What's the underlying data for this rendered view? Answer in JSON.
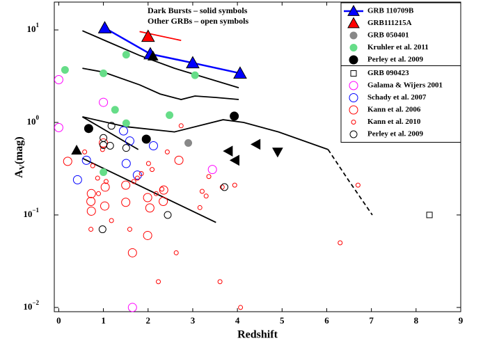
{
  "chart_data": {
    "type": "scatter",
    "xlabel": "Redshift",
    "ylabel": {
      "text": "A",
      "subscript": "V",
      "suffix": "(mag)"
    },
    "annotations": [
      "Dark Bursts – solid symbols",
      "Other GRBs – open symbols"
    ],
    "xlim": [
      -0.1,
      9
    ],
    "ylim": [
      0.009,
      20
    ],
    "log_y": true,
    "xticks": [
      0,
      1,
      2,
      3,
      4,
      5,
      6,
      7,
      8,
      9
    ],
    "yticks": [
      {
        "value": 0.01,
        "label": "10",
        "exponent": "−2"
      },
      {
        "value": 0.1,
        "label": "10",
        "exponent": "−1"
      },
      {
        "value": 1,
        "label": "10",
        "exponent": "0"
      },
      {
        "value": 10,
        "label": "10",
        "exponent": "1"
      }
    ],
    "legend": "upper right",
    "series": [
      {
        "name": "GRB 110709B",
        "color": "#0000ff",
        "fill": true,
        "marker": "triangle",
        "size": 9,
        "line": true,
        "x": [
          1.03,
          2.05,
          3.0,
          4.06
        ],
        "values": [
          10.5,
          5.5,
          4.4,
          3.4
        ]
      },
      {
        "name": "GRB111215A",
        "color": "#ff0000",
        "fill": true,
        "marker": "triangle",
        "size": 9,
        "line": false,
        "x": [
          2.0
        ],
        "values": [
          8.5
        ]
      },
      {
        "name": "GRB 050401",
        "color": "#888888",
        "fill": true,
        "marker": "circle",
        "size": 5,
        "line": false,
        "x": [
          2.9
        ],
        "values": [
          0.6
        ]
      },
      {
        "name": "Kruhler et al. 2011",
        "color": "#66dd88",
        "fill": true,
        "marker": "circle",
        "size": 5,
        "line": false,
        "x": [
          0.14,
          1.0,
          1.51,
          1.26,
          1.51,
          2.48,
          3.05,
          1.0
        ],
        "values": [
          3.7,
          3.4,
          5.4,
          1.37,
          0.98,
          1.2,
          3.24,
          0.29
        ]
      },
      {
        "name": "Perley et al. 2009",
        "color": "#000000",
        "fill": true,
        "marker": "circle",
        "size": 6,
        "line": false,
        "x": [
          0.67,
          1.96,
          3.93
        ],
        "values": [
          0.86,
          0.66,
          1.17
        ]
      },
      {
        "name": "GRB 090423",
        "color": "#000000",
        "fill": false,
        "marker": "square",
        "size": 4,
        "line": false,
        "x": [
          8.3
        ],
        "values": [
          0.1
        ]
      },
      {
        "name": "Galama & Wijers 2001",
        "color": "#ff00ff",
        "fill": false,
        "marker": "circle",
        "size": 6,
        "line": false,
        "x": [
          0.0,
          0.0,
          1.0,
          1.65,
          3.44
        ],
        "values": [
          2.9,
          0.88,
          1.65,
          0.01,
          0.31
        ]
      },
      {
        "name": "Schady et al. 2007",
        "color": "#0000ff",
        "fill": false,
        "marker": "circle",
        "size": 6,
        "line": false,
        "x": [
          0.62,
          0.42,
          1.45,
          1.59,
          1.51,
          1.76,
          2.12
        ],
        "values": [
          0.39,
          0.24,
          0.81,
          0.63,
          0.36,
          0.27,
          0.56
        ]
      },
      {
        "name": "Kann et al. 2006",
        "color": "#ff0000",
        "fill": false,
        "marker": "circle",
        "size": 6,
        "line": false,
        "x": [
          1.04,
          0.73,
          0.72,
          0.73,
          1.03,
          1.5,
          1.5,
          1.99,
          2.04,
          2.34,
          2.35,
          1.99,
          1.65,
          2.69,
          0.2,
          1.0
        ],
        "values": [
          0.2,
          0.17,
          0.14,
          0.11,
          0.125,
          0.137,
          0.21,
          0.154,
          0.119,
          0.14,
          0.186,
          0.06,
          0.039,
          0.39,
          0.38,
          0.6
        ]
      },
      {
        "name": "Kann et al. 2010",
        "color": "#ff0000",
        "fill": false,
        "marker": "circle",
        "size": 3,
        "line": false,
        "x": [
          0.58,
          0.76,
          0.87,
          0.89,
          0.98,
          1.06,
          1.18,
          1.68,
          1.76,
          1.59,
          1.85,
          2.01,
          2.09,
          2.18,
          2.23,
          2.31,
          2.43,
          2.63,
          2.74,
          3.16,
          3.21,
          3.3,
          3.36,
          3.66,
          3.94,
          4.07,
          3.61,
          0.72,
          6.3,
          6.7
        ],
        "values": [
          0.48,
          0.34,
          0.25,
          0.17,
          0.51,
          0.23,
          0.087,
          0.23,
          0.25,
          0.07,
          0.28,
          0.36,
          0.31,
          0.17,
          0.019,
          0.19,
          0.48,
          0.039,
          0.92,
          0.12,
          0.18,
          0.16,
          0.26,
          0.2,
          0.21,
          0.01,
          0.019,
          0.07,
          0.05,
          0.21
        ]
      },
      {
        "name": "Perley et al. 2009",
        "color": "#000000",
        "fill": false,
        "marker": "circle",
        "size": 5,
        "line": false,
        "x": [
          1.0,
          1.0,
          1.18,
          1.15,
          1.51,
          0.98,
          2.44,
          3.71
        ],
        "values": [
          0.68,
          0.57,
          0.92,
          0.56,
          0.53,
          0.07,
          0.1,
          0.2
        ]
      },
      {
        "color": "#000000",
        "fill": true,
        "marker": "triangle",
        "size": 7,
        "line": false,
        "directions": [
          "up",
          "up",
          "left",
          "left",
          "left",
          "down"
        ],
        "x": [
          0.4,
          2.11,
          3.8,
          3.95,
          4.42,
          4.9
        ],
        "values": [
          0.5,
          5.2,
          0.49,
          0.39,
          0.58,
          0.48
        ]
      }
    ],
    "curves": [
      {
        "color": "#000000",
        "x": [
          0.53,
          1.03,
          1.81,
          2.59,
          3.36,
          4.03
        ],
        "values": [
          9.8,
          7.7,
          5.3,
          3.85,
          2.97,
          2.37
        ]
      },
      {
        "color": "#000000",
        "x": [
          0.53,
          1.0,
          1.81,
          2.27,
          2.74,
          3.05,
          3.52,
          4.03
        ],
        "values": [
          3.85,
          3.5,
          2.55,
          2.03,
          1.77,
          1.93,
          1.86,
          1.77
        ]
      },
      {
        "color": "#000000",
        "x": [
          0.53,
          1.5,
          2.59,
          3.68,
          4.14,
          4.92,
          6.03
        ],
        "values": [
          1.15,
          0.9,
          0.79,
          1.07,
          1.0,
          0.79,
          0.51
        ]
      },
      {
        "color": "#000000",
        "dashed": true,
        "x": [
          6.03,
          6.48,
          7.02
        ],
        "values": [
          0.51,
          0.24,
          0.1
        ]
      },
      {
        "color": "#000000",
        "x": [
          0.53,
          1.78
        ],
        "values": [
          1.15,
          0.51
        ]
      },
      {
        "color": "#000000",
        "x": [
          0.53,
          3.52
        ],
        "values": [
          0.41,
          0.083
        ]
      },
      {
        "color": "#ff0000",
        "x": [
          1.81,
          2.74
        ],
        "values": [
          9.6,
          7.7
        ]
      }
    ]
  }
}
